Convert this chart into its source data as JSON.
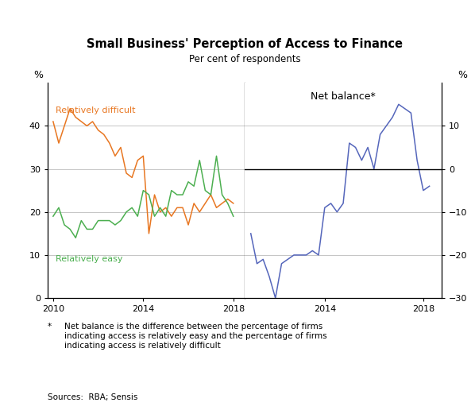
{
  "title": "Small Business' Perception of Access to Finance",
  "subtitle": "Per cent of respondents",
  "left_ylabel": "%",
  "right_ylabel": "%",
  "net_balance_label": "Net balance*",
  "footnote_star": "*",
  "footnote_text": "Net balance is the difference between the percentage of firms\nindicating access is relatively easy and the percentage of firms\nindicating access is relatively difficult",
  "sources": "Sources:  RBA; Sensis",
  "difficult_color": "#E87722",
  "easy_color": "#4CAF50",
  "net_color": "#5566BB",
  "left_ylim": [
    0,
    50
  ],
  "left_yticks": [
    0,
    10,
    20,
    30,
    40
  ],
  "right_ylim": [
    -30,
    20
  ],
  "right_yticks": [
    -30,
    -20,
    -10,
    0,
    10
  ],
  "difficult_label": "Relatively difficult",
  "easy_label": "Relatively easy",
  "left_xticks": [
    2010,
    2014,
    2018
  ],
  "right_xticks": [
    2014,
    2018
  ],
  "difficult_x": [
    2010.0,
    2010.25,
    2010.5,
    2010.75,
    2011.0,
    2011.25,
    2011.5,
    2011.75,
    2012.0,
    2012.25,
    2012.5,
    2012.75,
    2013.0,
    2013.25,
    2013.5,
    2013.75,
    2014.0,
    2014.25,
    2014.5,
    2014.75,
    2015.0,
    2015.25,
    2015.5,
    2015.75,
    2016.0,
    2016.25,
    2016.5,
    2016.75,
    2017.0,
    2017.25,
    2017.5,
    2017.75,
    2018.0
  ],
  "difficult_y": [
    41,
    36,
    40,
    44,
    42,
    41,
    40,
    41,
    39,
    38,
    36,
    33,
    35,
    29,
    28,
    32,
    33,
    15,
    24,
    20,
    21,
    19,
    21,
    21,
    17,
    22,
    20,
    22,
    24,
    21,
    22,
    23,
    22
  ],
  "easy_x": [
    2010.0,
    2010.25,
    2010.5,
    2010.75,
    2011.0,
    2011.25,
    2011.5,
    2011.75,
    2012.0,
    2012.25,
    2012.5,
    2012.75,
    2013.0,
    2013.25,
    2013.5,
    2013.75,
    2014.0,
    2014.25,
    2014.5,
    2014.75,
    2015.0,
    2015.25,
    2015.5,
    2015.75,
    2016.0,
    2016.25,
    2016.5,
    2016.75,
    2017.0,
    2017.25,
    2017.5,
    2017.75,
    2018.0
  ],
  "easy_y": [
    19,
    21,
    17,
    16,
    14,
    18,
    16,
    16,
    18,
    18,
    18,
    17,
    18,
    20,
    21,
    19,
    25,
    24,
    19,
    21,
    19,
    25,
    24,
    24,
    27,
    26,
    32,
    25,
    24,
    33,
    24,
    22,
    19
  ],
  "net_x": [
    2011.0,
    2011.25,
    2011.5,
    2011.75,
    2012.0,
    2012.25,
    2012.5,
    2012.75,
    2013.0,
    2013.25,
    2013.5,
    2013.75,
    2014.0,
    2014.25,
    2014.5,
    2014.75,
    2015.0,
    2015.25,
    2015.5,
    2015.75,
    2016.0,
    2016.25,
    2016.5,
    2016.75,
    2017.0,
    2017.25,
    2017.5,
    2017.75,
    2018.0,
    2018.25
  ],
  "net_y": [
    -15,
    -22,
    -21,
    -25,
    -30,
    -22,
    -21,
    -20,
    -20,
    -20,
    -19,
    -20,
    -9,
    -8,
    -10,
    -8,
    6,
    5,
    2,
    5,
    0,
    8,
    10,
    12,
    15,
    14,
    13,
    2,
    -5,
    -4
  ],
  "left_xlim": [
    2009.75,
    2018.5
  ],
  "right_xlim": [
    2010.75,
    2018.75
  ],
  "grid_color": "#BBBBBB",
  "grid_linewidth": 0.6,
  "spine_linewidth": 0.9
}
